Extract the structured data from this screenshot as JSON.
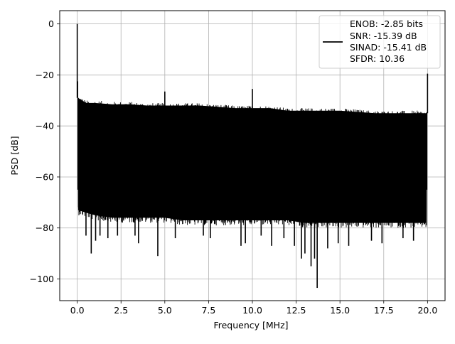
{
  "chart_data": {
    "type": "line",
    "title": "",
    "xlabel": "Frequency [MHz]",
    "ylabel": "PSD [dB]",
    "xlim": [
      -1,
      21
    ],
    "ylim": [
      -108.5,
      5.2
    ],
    "xticks": [
      0.0,
      2.5,
      5.0,
      7.5,
      10.0,
      12.5,
      15.0,
      17.5,
      20.0
    ],
    "xtick_labels": [
      "0.0",
      "2.5",
      "5.0",
      "7.5",
      "10.0",
      "12.5",
      "15.0",
      "17.5",
      "20.0"
    ],
    "yticks": [
      0,
      -20,
      -40,
      -60,
      -80,
      -100
    ],
    "ytick_labels": [
      "0",
      "−20",
      "−40",
      "−60",
      "−80",
      "−100"
    ],
    "grid": true,
    "legend": {
      "placement": "top-right",
      "entries": [
        "ENOB: -2.85 bits",
        "SNR: -15.39 dB",
        "SINAD: -15.41 dB",
        "SFDR: 10.36"
      ]
    },
    "series": [
      {
        "color": "#000000",
        "band": {
          "x": [
            0.05,
            0.5,
            1,
            2,
            3,
            4,
            5,
            6,
            7,
            8,
            9,
            10,
            11,
            12,
            13,
            14,
            15,
            16,
            17,
            18,
            19,
            19.95
          ],
          "upper": [
            -29,
            -31,
            -31,
            -31.5,
            -31.5,
            -32,
            -32,
            -32,
            -32,
            -32.5,
            -33,
            -33,
            -33,
            -34,
            -34,
            -34,
            -34,
            -34.5,
            -35,
            -35,
            -35,
            -35
          ],
          "lower": [
            -73,
            -74,
            -75,
            -76,
            -76,
            -76,
            -76,
            -77,
            -77,
            -77,
            -77,
            -77,
            -77,
            -77,
            -78,
            -78,
            -78,
            -78,
            -78,
            -78,
            -78,
            -78
          ]
        },
        "spikes": [
          {
            "x": 0.0,
            "y": 0.0
          },
          {
            "x": 0.02,
            "y": -22.5
          },
          {
            "x": 5.0,
            "y": -26.5
          },
          {
            "x": 10.0,
            "y": -25.5
          },
          {
            "x": 20.0,
            "y": -19.5
          }
        ],
        "dips": [
          {
            "x": 0.5,
            "y": -83
          },
          {
            "x": 0.8,
            "y": -90
          },
          {
            "x": 1.05,
            "y": -85
          },
          {
            "x": 1.3,
            "y": -83
          },
          {
            "x": 1.75,
            "y": -84
          },
          {
            "x": 2.3,
            "y": -83
          },
          {
            "x": 3.3,
            "y": -83
          },
          {
            "x": 3.5,
            "y": -86
          },
          {
            "x": 4.6,
            "y": -91
          },
          {
            "x": 5.6,
            "y": -84
          },
          {
            "x": 7.2,
            "y": -83
          },
          {
            "x": 7.6,
            "y": -84
          },
          {
            "x": 9.35,
            "y": -87
          },
          {
            "x": 9.6,
            "y": -86
          },
          {
            "x": 10.5,
            "y": -83
          },
          {
            "x": 11.1,
            "y": -87
          },
          {
            "x": 11.8,
            "y": -84
          },
          {
            "x": 12.4,
            "y": -87
          },
          {
            "x": 12.8,
            "y": -92
          },
          {
            "x": 13.0,
            "y": -90
          },
          {
            "x": 13.35,
            "y": -95
          },
          {
            "x": 13.55,
            "y": -92
          },
          {
            "x": 13.7,
            "y": -103.5
          },
          {
            "x": 14.3,
            "y": -88
          },
          {
            "x": 14.9,
            "y": -86
          },
          {
            "x": 15.5,
            "y": -87
          },
          {
            "x": 16.8,
            "y": -85
          },
          {
            "x": 17.4,
            "y": -86
          },
          {
            "x": 18.6,
            "y": -84
          },
          {
            "x": 19.2,
            "y": -85
          }
        ]
      }
    ]
  }
}
